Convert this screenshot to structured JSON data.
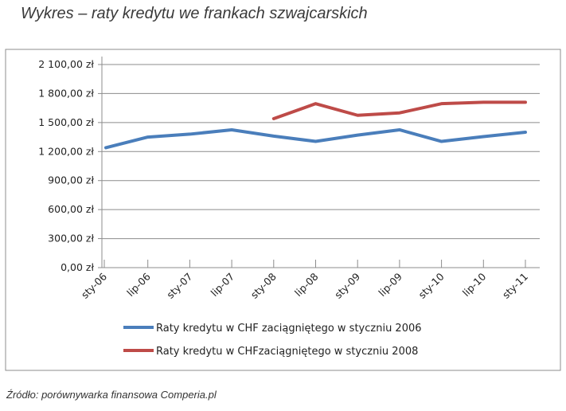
{
  "title": "Wykres – raty kredytu we frankach szwajcarskich",
  "source": "Źródło: porównywarka finansowa Comperia.pl",
  "chart_data": {
    "type": "line",
    "categories": [
      "sty-06",
      "lip-06",
      "sty-07",
      "lip-07",
      "sty-08",
      "lip-08",
      "sty-09",
      "lip-09",
      "sty-10",
      "lip-10",
      "sty-11"
    ],
    "ylim": [
      0,
      2100
    ],
    "yticks": [
      "0,00 zł",
      "300,00 zł",
      "600,00 zł",
      "900,00 zł",
      "1 200,00 zł",
      "1 500,00 zł",
      "1 800,00 zł",
      "2 100,00 zł"
    ],
    "grid": true,
    "legend": "bottom",
    "series": [
      {
        "name": "Raty kredytu w CHF zaciągniętego w styczniu 2006",
        "color": "#4a7ebb",
        "values": [
          1240,
          1350,
          1380,
          1425,
          1360,
          1305,
          1370,
          1425,
          1305,
          1355,
          1400
        ]
      },
      {
        "name": "Raty kredytu w CHFzaciągniętego w styczniu 2008",
        "color": "#be4b48",
        "values": [
          null,
          null,
          null,
          null,
          1540,
          1695,
          1575,
          1600,
          1695,
          1710,
          1710
        ]
      }
    ]
  }
}
